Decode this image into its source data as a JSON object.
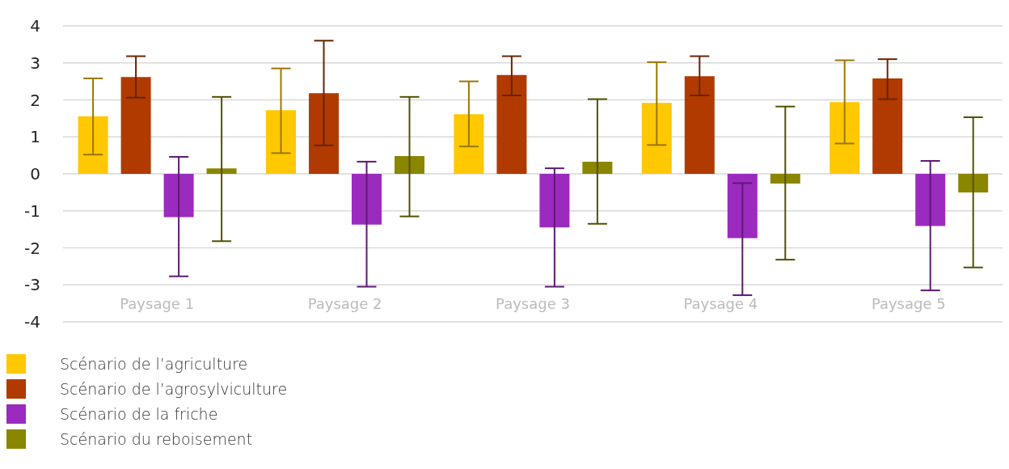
{
  "chart_data": {
    "type": "bar",
    "categories": [
      "Paysage 1",
      "Paysage 2",
      "Paysage 3",
      "Paysage 4",
      "Paysage 5"
    ],
    "series": [
      {
        "name": "Scénario de l’agriculture",
        "color": "#ffc800",
        "values": [
          1.56,
          1.72,
          1.61,
          1.92,
          1.94
        ],
        "errors": [
          [
            0.52,
            2.58
          ],
          [
            0.56,
            2.85
          ],
          [
            0.74,
            2.5
          ],
          [
            0.78,
            3.02
          ],
          [
            0.82,
            3.07
          ]
        ]
      },
      {
        "name": "Scénario de l’agrosylviculture",
        "color": "#b03a00",
        "values": [
          2.62,
          2.18,
          2.67,
          2.64,
          2.58
        ],
        "errors": [
          [
            2.06,
            3.18
          ],
          [
            0.77,
            3.6
          ],
          [
            2.12,
            3.18
          ],
          [
            2.12,
            3.18
          ],
          [
            2.02,
            3.1
          ]
        ]
      },
      {
        "name": "Scénario de la friche",
        "color": "#9b2bbf",
        "values": [
          -1.17,
          -1.37,
          -1.45,
          -1.74,
          -1.41
        ],
        "errors": [
          [
            -2.77,
            0.46
          ],
          [
            -3.05,
            0.33
          ],
          [
            -3.05,
            0.15
          ],
          [
            -3.28,
            -0.25
          ],
          [
            -3.15,
            0.35
          ]
        ]
      },
      {
        "name": "Scénario du reboisement",
        "color": "#8b8600",
        "values": [
          0.15,
          0.48,
          0.33,
          -0.26,
          -0.5
        ],
        "errors": [
          [
            -1.82,
            2.08
          ],
          [
            -1.15,
            2.08
          ],
          [
            -1.35,
            2.02
          ],
          [
            -2.32,
            1.82
          ],
          [
            -2.53,
            1.53
          ]
        ]
      }
    ],
    "ylim": [
      -4,
      4
    ],
    "yticks": [
      -4,
      -3,
      -2,
      -1,
      0,
      1,
      2,
      3,
      4
    ],
    "grid": "y",
    "legend": "bottom left"
  }
}
